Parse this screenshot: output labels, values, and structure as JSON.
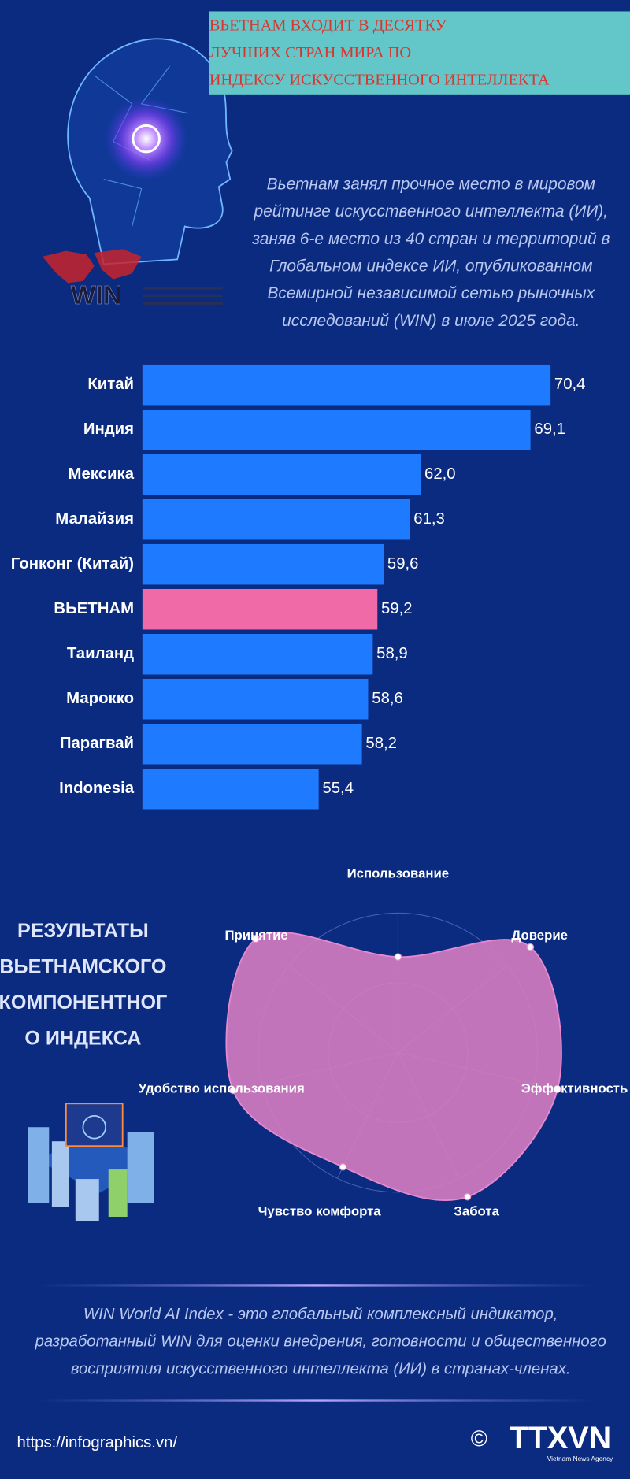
{
  "header": {
    "title": [
      "ВЬЕТНАМ ВХОДИТ В ДЕСЯТКУ",
      " ЛУЧШИХ СТРАН МИРА ПО",
      "ИНДЕКСУ ИСКУССТВЕННОГО ИНТЕЛЛЕКТА"
    ],
    "logo": "WIN",
    "description": [
      "Вьетнам занял прочное место в мировом",
      "рейтинге искусственного интеллекта (ИИ),",
      "заняв 6-е место из 40 стран и территорий в",
      "Глобальном индексе ИИ, опубликованном",
      "Всемирной независимой сетью рыночных",
      "исследований (WIN) в июле 2025 года."
    ]
  },
  "chart_data": [
    {
      "type": "bar",
      "orientation": "horizontal",
      "categories": [
        "Китай",
        "Индия",
        "Мексика",
        "Малайзия",
        "Гонконг (Китай)",
        "ВЬЕТНАМ",
        "Таиланд",
        "Марокко",
        "Парагвай",
        "Indonesia"
      ],
      "values": [
        70.4,
        69.1,
        62.0,
        61.3,
        59.6,
        59.2,
        58.9,
        58.6,
        58.2,
        55.4
      ],
      "value_labels": [
        "70,4",
        "69,1",
        "62,0",
        "61,3",
        "59,6",
        "59,2",
        "58,9",
        "58,6",
        "58,2",
        "55,4"
      ],
      "colors": [
        "#1e7bff",
        "#1e7bff",
        "#1e7bff",
        "#1e7bff",
        "#1e7bff",
        "#f06aa8",
        "#1e7bff",
        "#1e7bff",
        "#1e7bff",
        "#1e7bff"
      ],
      "xlim": [
        44,
        72
      ]
    },
    {
      "type": "radar",
      "title": [
        "РЕЗУЛЬТАТЫ",
        "ВЬЕТНАМСКОГО",
        "КОМПОНЕНТНОГ",
        "О ИНДЕКСА"
      ],
      "categories": [
        "Использование",
        "Доверие",
        "Эффективность",
        "Забота",
        "Чувство комфорта",
        "Удобство использования",
        "Принятие"
      ],
      "values": [
        52,
        92,
        89,
        87,
        69,
        92,
        99
      ],
      "rlim": [
        0,
        100
      ],
      "color": "#d27bc0",
      "grid": true
    }
  ],
  "footer": {
    "note": [
      "WIN World AI Index - это глобальный комплексный индикатор,",
      "разработанный WIN для оценки внедрения, готовности и общественного",
      "восприятия искусственного интеллекта (ИИ) в странах-членах."
    ],
    "url": "https://infographics.vn/",
    "copyright": "©",
    "logo": "TTXVN",
    "logo_sub": "Vietnam News Agency"
  }
}
